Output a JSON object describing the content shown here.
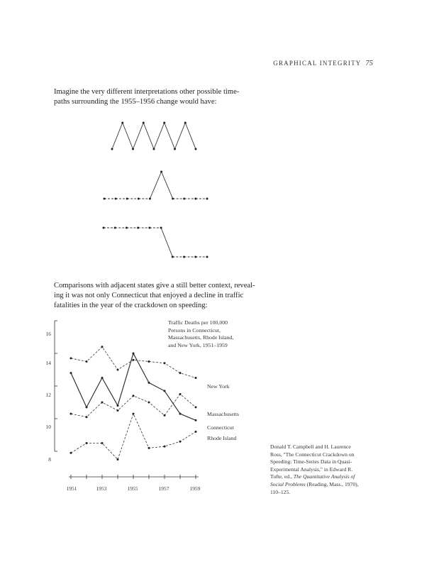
{
  "header": {
    "title": "GRAPHICAL INTEGRITY",
    "page_number": "75"
  },
  "paragraph1": [
    "Imagine the very different interpretations other possible time-",
    "paths surrounding the 1955–1956 change would have:"
  ],
  "paragraph2": [
    "Comparisons with adjacent states give a still better context, reveal-",
    "ing it was not only Connecticut that enjoyed a decline in traffic",
    "fatalities in the year of the crackdown on speeding:"
  ],
  "caption": {
    "line1": "Donald T. Campbell and H. Laurence",
    "line2": "Ross, \"The Connecticut Crackdown on",
    "line3": "Speeding: Time-Series Data in Quasi-",
    "line4": "Experimental Analysis,\" in Edward R.",
    "line5_plain": "Tufte, ed., ",
    "line5_italic": "The Quantitative Analysis of",
    "line6_italic": "Social Problems",
    "line6_plain": " (Reading, Mass., 1970),",
    "line7": "110–125."
  },
  "chart_data": [
    {
      "type": "line",
      "x": [
        1,
        2,
        3,
        4,
        5,
        6,
        7,
        8,
        9
      ],
      "series": [
        {
          "values": [
            0,
            1,
            0,
            1,
            0,
            1,
            0,
            1,
            0
          ]
        }
      ],
      "ylim": [
        0,
        1
      ]
    },
    {
      "type": "line",
      "x": [
        1,
        2,
        3,
        4,
        5,
        6,
        7,
        8,
        9,
        10
      ],
      "series": [
        {
          "values": [
            0,
            0,
            0,
            0,
            0,
            1,
            0,
            0,
            0,
            0
          ]
        }
      ],
      "ylim": [
        0,
        1
      ]
    },
    {
      "type": "line",
      "x": [
        1,
        2,
        3,
        4,
        5,
        6,
        7,
        8,
        9,
        10
      ],
      "series": [
        {
          "values": [
            1,
            1,
            1,
            1,
            1,
            1,
            0,
            0,
            0,
            0
          ]
        }
      ],
      "ylim": [
        0,
        1
      ]
    },
    {
      "type": "line",
      "title": "Traffic Deaths per 100,000 Persons in Connecticut, Massachusetts, Rhode Island, and New York, 1951–1959",
      "title_lines": [
        "Traffic Deaths per 100,000",
        "Persons in Connecticut,",
        "Massachusetts, Rhode Island,",
        "and New York, 1951–1959"
      ],
      "x": [
        1951,
        1952,
        1953,
        1954,
        1955,
        1956,
        1957,
        1958,
        1959
      ],
      "x_ticks": [
        "1951",
        "1953",
        "1955",
        "1957",
        "1959"
      ],
      "y_ticks": [
        "8",
        "10",
        "12",
        "14",
        "16"
      ],
      "xlim": [
        1951,
        1959
      ],
      "ylim": [
        7,
        16
      ],
      "series": [
        {
          "name": "New York",
          "dashed": true,
          "values": [
            13.7,
            13.5,
            14.4,
            13.0,
            13.6,
            13.5,
            13.4,
            12.8,
            12.5
          ]
        },
        {
          "name": "Massachusetts",
          "dashed": true,
          "values": [
            10.3,
            10.1,
            11.0,
            10.5,
            11.4,
            11.0,
            10.2,
            11.5,
            10.7
          ]
        },
        {
          "name": "Connecticut",
          "dashed": false,
          "values": [
            12.8,
            10.7,
            12.5,
            10.8,
            14.0,
            12.2,
            11.7,
            10.3,
            9.9
          ]
        },
        {
          "name": "Rhode Island",
          "dashed": true,
          "values": [
            7.9,
            8.5,
            8.5,
            7.5,
            10.3,
            8.2,
            8.3,
            8.6,
            9.2
          ]
        }
      ]
    }
  ]
}
